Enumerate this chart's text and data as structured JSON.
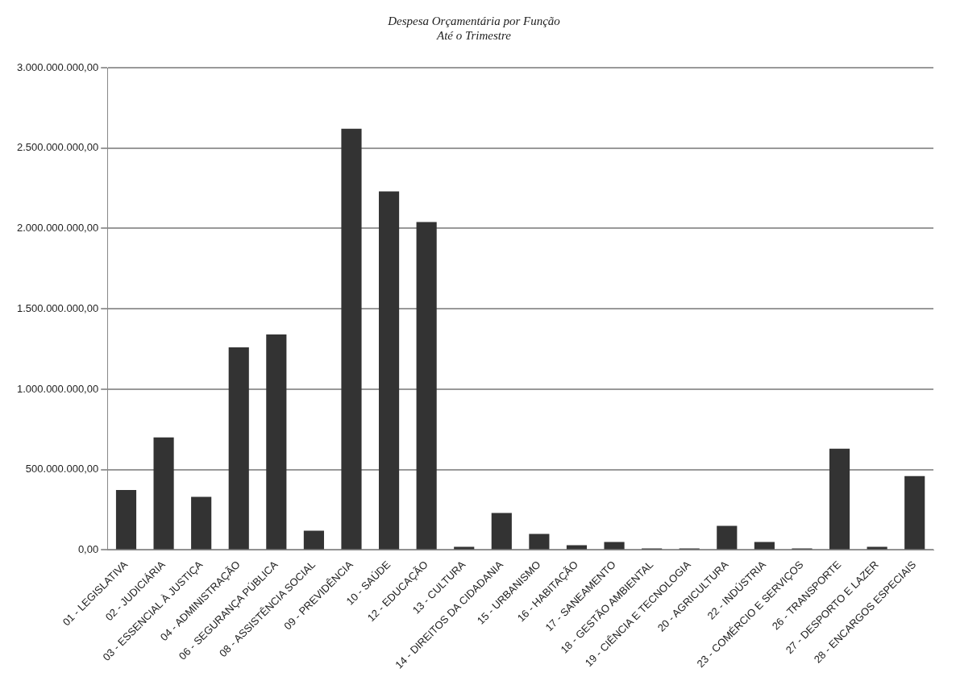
{
  "chart_data": {
    "type": "bar",
    "title": "Despesa Orçamentária por Função",
    "subtitle": "Até o Trimestre",
    "categories": [
      "01 - LEGISLATIVA",
      "02 - JUDICIÁRIA",
      "03 - ESSENCIAL À JUSTIÇA",
      "04 - ADMINISTRAÇÃO",
      "06 - SEGURANÇA PÚBLICA",
      "08 - ASSISTÊNCIA SOCIAL",
      "09 - PREVIDÊNCIA",
      "10 - SAÚDE",
      "12 - EDUCAÇÃO",
      "13 - CULTURA",
      "14 - DIREITOS DA CIDADANIA",
      "15 - URBANISMO",
      "16 - HABITAÇÃO",
      "17 - SANEAMENTO",
      "18 - GESTÃO AMBIENTAL",
      "19 - CIÊNCIA E TECNOLOGIA",
      "20 - AGRICULTURA",
      "22 - INDÚSTRIA",
      "23 - COMÉRCIO E SERVIÇOS",
      "26 - TRANSPORTE",
      "27 - DESPORTO E LAZER",
      "28 - ENCARGOS ESPECIAIS"
    ],
    "values": [
      373000000,
      700000000,
      330000000,
      1260000000,
      1340000000,
      120000000,
      2620000000,
      2230000000,
      2040000000,
      20000000,
      230000000,
      100000000,
      30000000,
      50000000,
      10000000,
      10000000,
      150000000,
      50000000,
      10000000,
      630000000,
      20000000,
      460000000
    ],
    "color": "#333333",
    "ylim": [
      0,
      3000000000
    ],
    "yticks": [
      {
        "value": 0,
        "label": "0,00"
      },
      {
        "value": 500000000,
        "label": "500.000.000,00"
      },
      {
        "value": 1000000000,
        "label": "1.000.000.000,00"
      },
      {
        "value": 1500000000,
        "label": "1.500.000.000,00"
      },
      {
        "value": 2000000000,
        "label": "2.000.000.000,00"
      },
      {
        "value": 2500000000,
        "label": "2.500.000.000,00"
      },
      {
        "value": 3000000000,
        "label": "3.000.000.000,00"
      }
    ],
    "grid": "y"
  }
}
